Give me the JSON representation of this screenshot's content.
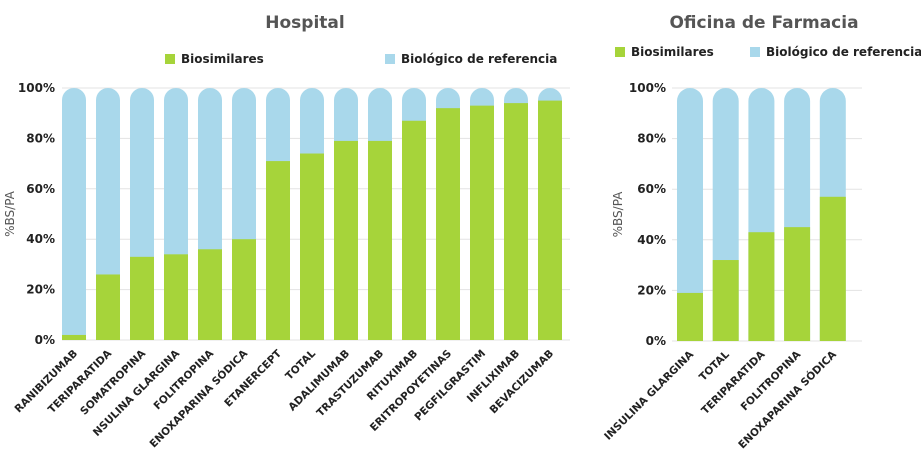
{
  "colors": {
    "biosimilar": "#a6d43a",
    "reference": "#a9d8eb",
    "grid": "#e3e3e3",
    "title": "#555555",
    "text": "#222222"
  },
  "chart_data": [
    {
      "type": "bar",
      "stacked": true,
      "title": "Hospital",
      "ylabel": "%BS/PA",
      "ylim": [
        0,
        100
      ],
      "yticks": [
        "0%",
        "20%",
        "40%",
        "60%",
        "80%",
        "100%"
      ],
      "legend": [
        "Biosimilares",
        "Biológico de referencia"
      ],
      "legend_position": "top",
      "categories": [
        "RANIBIZUMAB",
        "TERIPARATIDA",
        "SOMATROPINA",
        "NSULINA GLARGINA",
        "FOLITROPINA",
        "ENOXAPARINA SÓDICA",
        "ETANERCEPT",
        "TOTAL",
        "ADALIMUMAB",
        "TRASTUZUMAB",
        "RITUXIMAB",
        "ERITROPOYETINAS",
        "PEGFILGRASTIM",
        "INFLIXIMAB",
        "BEVACIZUMAB"
      ],
      "series": [
        {
          "name": "Biosimilares",
          "values": [
            2,
            26,
            33,
            34,
            36,
            40,
            71,
            74,
            79,
            79,
            87,
            92,
            93,
            94,
            95
          ]
        },
        {
          "name": "Biológico de referencia",
          "values": [
            98,
            74,
            67,
            66,
            64,
            60,
            29,
            26,
            21,
            21,
            13,
            8,
            7,
            6,
            5
          ]
        }
      ]
    },
    {
      "type": "bar",
      "stacked": true,
      "title": "Oficina de Farmacia",
      "ylabel": "%BS/PA",
      "ylim": [
        0,
        100
      ],
      "yticks": [
        "0%",
        "20%",
        "40%",
        "60%",
        "80%",
        "100%"
      ],
      "legend": [
        "Biosimilares",
        "Biológico de referencia"
      ],
      "legend_position": "top",
      "categories": [
        "INSULINA GLARGINA",
        "TOTAL",
        "TERIPARATIDA",
        "FOLITROPINA",
        "ENOXAPARINA SÓDICA"
      ],
      "series": [
        {
          "name": "Biosimilares",
          "values": [
            19,
            32,
            43,
            45,
            57
          ]
        },
        {
          "name": "Biológico de referencia",
          "values": [
            81,
            68,
            57,
            55,
            43
          ]
        }
      ]
    }
  ]
}
